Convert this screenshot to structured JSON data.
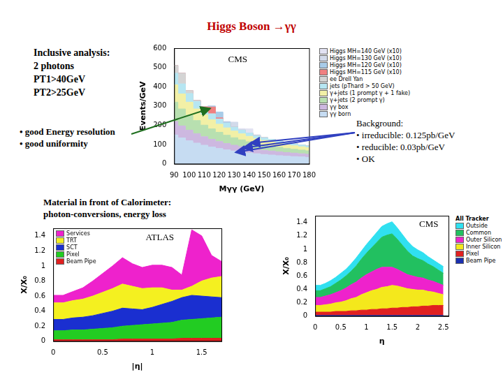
{
  "title": "Higgs Boson →γγ",
  "analysis_notes": [
    "Inclusive analysis:",
    "2 photons",
    "PT1>40GeV",
    "PT2>25GeV"
  ],
  "resolution_notes": [
    "• good Energy resolution",
    "• good uniformity"
  ],
  "background_notes": [
    "Background:",
    "• irreducible: 0.125pb/GeV",
    "• reducible:   0.03pb/GeV",
    "• OK"
  ],
  "material_notes": [
    "Material in front of Calorimeter:",
    "photon-conversions, energy loss"
  ],
  "chart_data": [
    {
      "type": "area",
      "stacked": true,
      "line_style": "steps",
      "annotation": "CMS",
      "x_label": "Mγγ (GeV)",
      "y_label": "Events/GeV",
      "grid": false,
      "legend": "right",
      "x": [
        90,
        95,
        100,
        105,
        110,
        115,
        120,
        125,
        130,
        135,
        140,
        145,
        150,
        155,
        160,
        165,
        170,
        175,
        180
      ],
      "xlim": [
        90,
        180
      ],
      "xticks": [
        90,
        100,
        110,
        120,
        130,
        140,
        150,
        160,
        170,
        180
      ],
      "ylim": [
        0,
        600
      ],
      "yticks": [
        0,
        100,
        200,
        300,
        400,
        500,
        600
      ],
      "series": [
        {
          "name": "γγ born",
          "color": "#c6dcf2",
          "values": [
            150,
            135,
            120,
            108,
            97,
            88,
            80,
            73,
            67,
            62,
            57,
            53,
            49,
            46,
            43,
            40,
            38,
            36,
            34
          ]
        },
        {
          "name": "γγ box",
          "color": "#cdb8e0",
          "values": [
            70,
            62,
            55,
            49,
            44,
            40,
            36,
            33,
            30,
            28,
            26,
            24,
            22,
            21,
            20,
            19,
            18,
            17,
            16
          ]
        },
        {
          "name": "γ+jets (2 prompt γ)",
          "color": "#b8e0b0",
          "values": [
            100,
            88,
            77,
            68,
            60,
            54,
            48,
            43,
            39,
            35,
            32,
            29,
            27,
            25,
            23,
            21,
            20,
            19,
            18
          ]
        },
        {
          "name": "γ+jets (1 prompt γ + 1 fake)",
          "color": "#f2f0a6",
          "values": [
            90,
            78,
            68,
            60,
            53,
            47,
            42,
            38,
            34,
            31,
            28,
            26,
            24,
            22,
            20,
            19,
            18,
            17,
            16
          ]
        },
        {
          "name": "jets (pThard > 50 GeV)",
          "color": "#b6e6f2",
          "values": [
            60,
            52,
            45,
            39,
            34,
            30,
            27,
            24,
            21,
            19,
            17,
            15,
            14,
            13,
            12,
            11,
            10,
            9,
            9
          ]
        },
        {
          "name": "ee Drell Yan",
          "color": "#d4d4d4",
          "values": [
            40,
            55,
            15,
            5,
            2,
            1,
            0,
            0,
            0,
            0,
            0,
            0,
            0,
            0,
            0,
            0,
            0,
            0,
            0
          ]
        },
        {
          "name": "Higgs MH=115 GeV (x10)",
          "color": "#f08080",
          "values": [
            0,
            0,
            0,
            0,
            6,
            35,
            6,
            0,
            0,
            0,
            0,
            0,
            0,
            0,
            0,
            0,
            0,
            0,
            0
          ]
        },
        {
          "name": "Higgs MH=120 GeV (x10)",
          "color": "#a8cce8",
          "values": [
            0,
            0,
            0,
            0,
            0,
            5,
            30,
            5,
            0,
            0,
            0,
            0,
            0,
            0,
            0,
            0,
            0,
            0,
            0
          ]
        },
        {
          "name": "Higgs MH=130 GeV (x10)",
          "color": "#d2daea",
          "values": [
            0,
            0,
            0,
            0,
            0,
            0,
            0,
            4,
            25,
            4,
            0,
            0,
            0,
            0,
            0,
            0,
            0,
            0,
            0
          ]
        },
        {
          "name": "Higgs MH=140 GeV (x10)",
          "color": "#e2e2f2",
          "values": [
            0,
            0,
            0,
            0,
            0,
            0,
            0,
            0,
            0,
            4,
            22,
            4,
            0,
            0,
            0,
            0,
            0,
            0,
            0
          ]
        }
      ]
    },
    {
      "type": "area",
      "stacked": true,
      "annotation": "ATLAS",
      "x_label": "|η|",
      "y_label": "X/X₀",
      "grid": false,
      "legend": "top-left",
      "x": [
        0,
        0.1,
        0.2,
        0.3,
        0.4,
        0.5,
        0.6,
        0.7,
        0.8,
        0.9,
        1,
        1.1,
        1.2,
        1.3,
        1.4,
        1.5,
        1.6,
        1.7
      ],
      "xlim": [
        0,
        1.7
      ],
      "xticks": [
        0,
        0.5,
        1,
        1.5
      ],
      "ylim": [
        0,
        1.5
      ],
      "yticks": [
        0,
        0.2,
        0.4,
        0.6,
        0.8,
        1,
        1.2,
        1.4
      ],
      "series": [
        {
          "name": "Beam Pipe",
          "color": "#e02020",
          "values": [
            0.02,
            0.02,
            0.02,
            0.02,
            0.02,
            0.02,
            0.02,
            0.03,
            0.03,
            0.03,
            0.03,
            0.03,
            0.03,
            0.04,
            0.04,
            0.04,
            0.04,
            0.04
          ]
        },
        {
          "name": "Pixel",
          "color": "#22cc22",
          "values": [
            0.12,
            0.12,
            0.13,
            0.13,
            0.14,
            0.15,
            0.16,
            0.17,
            0.18,
            0.19,
            0.2,
            0.21,
            0.22,
            0.24,
            0.25,
            0.26,
            0.27,
            0.28
          ]
        },
        {
          "name": "SCT",
          "color": "#1a2fd0",
          "values": [
            0.15,
            0.15,
            0.16,
            0.17,
            0.18,
            0.2,
            0.22,
            0.24,
            0.22,
            0.2,
            0.22,
            0.25,
            0.28,
            0.3,
            0.32,
            0.3,
            0.28,
            0.26
          ]
        },
        {
          "name": "TRT",
          "color": "#f4f020",
          "values": [
            0.22,
            0.22,
            0.23,
            0.24,
            0.26,
            0.28,
            0.3,
            0.32,
            0.3,
            0.28,
            0.26,
            0.22,
            0.15,
            0.1,
            0.12,
            0.2,
            0.25,
            0.28
          ]
        },
        {
          "name": "Services",
          "color": "#ee22cc",
          "values": [
            0.1,
            0.1,
            0.12,
            0.15,
            0.2,
            0.25,
            0.3,
            0.35,
            0.3,
            0.28,
            0.3,
            0.3,
            0.3,
            0.2,
            0.75,
            0.6,
            0.3,
            0.2
          ]
        }
      ]
    },
    {
      "type": "area",
      "stacked": true,
      "title": "All Tracker",
      "annotation": "CMS",
      "x_label": "η",
      "y_label": "X/X₀",
      "grid": false,
      "legend": "right",
      "x": [
        0,
        0.1,
        0.2,
        0.3,
        0.4,
        0.5,
        0.6,
        0.7,
        0.8,
        0.9,
        1,
        1.1,
        1.2,
        1.3,
        1.4,
        1.5,
        1.6,
        1.7,
        1.8,
        1.9,
        2,
        2.1,
        2.2,
        2.3,
        2.4,
        2.5
      ],
      "xlim": [
        0,
        2.6
      ],
      "xticks": [
        0,
        0.5,
        1,
        1.5,
        2,
        2.5
      ],
      "ylim": [
        0,
        1.5
      ],
      "yticks": [
        0,
        0.2,
        0.4,
        0.6,
        0.8,
        1,
        1.2,
        1.4
      ],
      "series": [
        {
          "name": "Beam Pipe",
          "color": "#1a2fb0",
          "values": [
            0.01,
            0.01,
            0.01,
            0.01,
            0.01,
            0.01,
            0.01,
            0.01,
            0.01,
            0.01,
            0.01,
            0.01,
            0.01,
            0.01,
            0.01,
            0.01,
            0.01,
            0.01,
            0.01,
            0.01,
            0.01,
            0.01,
            0.01,
            0.01,
            0.01,
            0.01
          ]
        },
        {
          "name": "Pixel",
          "color": "#e02020",
          "values": [
            0.05,
            0.05,
            0.05,
            0.05,
            0.06,
            0.06,
            0.06,
            0.07,
            0.07,
            0.08,
            0.08,
            0.09,
            0.09,
            0.1,
            0.1,
            0.11,
            0.11,
            0.12,
            0.12,
            0.13,
            0.13,
            0.14,
            0.14,
            0.15,
            0.15,
            0.15
          ]
        },
        {
          "name": "Inner Silicon",
          "color": "#f4e81c",
          "values": [
            0.1,
            0.1,
            0.11,
            0.12,
            0.13,
            0.14,
            0.16,
            0.18,
            0.2,
            0.23,
            0.26,
            0.28,
            0.3,
            0.32,
            0.33,
            0.34,
            0.33,
            0.3,
            0.28,
            0.26,
            0.25,
            0.24,
            0.22,
            0.2,
            0.18,
            0.16
          ]
        },
        {
          "name": "Outer Silicon",
          "color": "#ee22cc",
          "values": [
            0.12,
            0.12,
            0.13,
            0.14,
            0.15,
            0.17,
            0.19,
            0.21,
            0.23,
            0.25,
            0.27,
            0.28,
            0.3,
            0.3,
            0.29,
            0.27,
            0.25,
            0.23,
            0.21,
            0.2,
            0.19,
            0.18,
            0.17,
            0.16,
            0.15,
            0.14
          ]
        },
        {
          "name": "Common",
          "color": "#22c060",
          "values": [
            0.1,
            0.1,
            0.11,
            0.12,
            0.14,
            0.16,
            0.18,
            0.2,
            0.24,
            0.28,
            0.32,
            0.36,
            0.4,
            0.45,
            0.48,
            0.5,
            0.45,
            0.4,
            0.35,
            0.3,
            0.28,
            0.26,
            0.24,
            0.22,
            0.2,
            0.18
          ]
        },
        {
          "name": "Outside",
          "color": "#30e0f0",
          "values": [
            0.08,
            0.08,
            0.08,
            0.09,
            0.09,
            0.1,
            0.1,
            0.11,
            0.12,
            0.12,
            0.13,
            0.14,
            0.15,
            0.16,
            0.17,
            0.18,
            0.17,
            0.16,
            0.15,
            0.14,
            0.13,
            0.12,
            0.11,
            0.1,
            0.1,
            0.1
          ]
        }
      ]
    }
  ]
}
